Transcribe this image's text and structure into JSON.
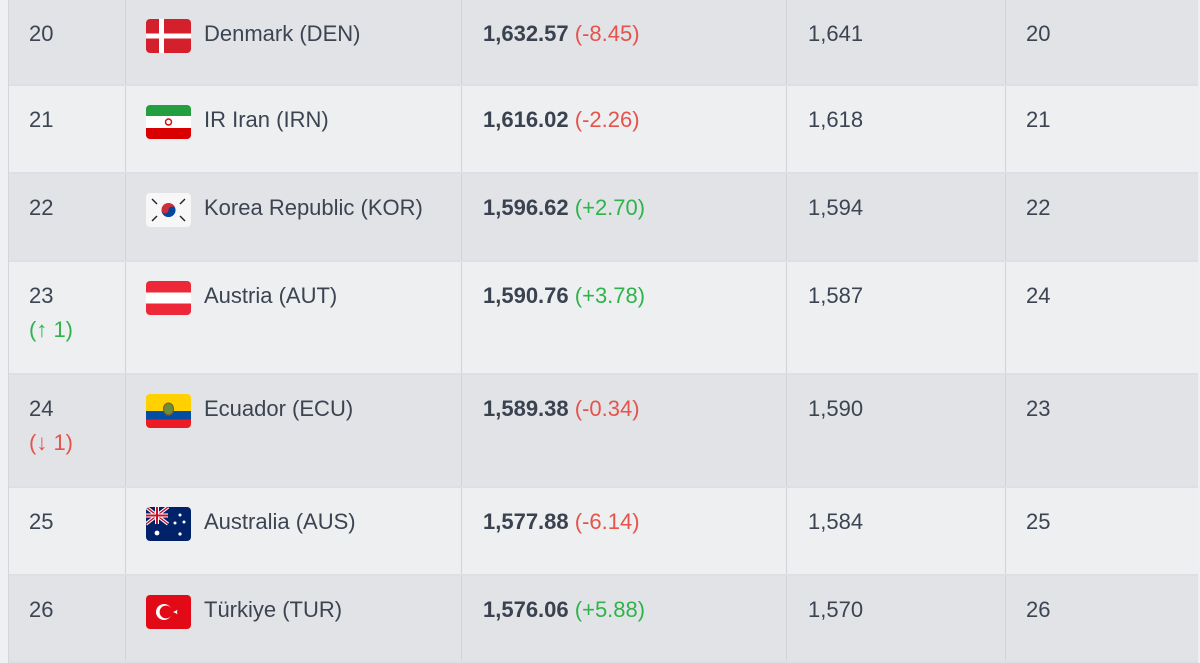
{
  "rows": [
    {
      "rank": "20",
      "movement": "",
      "movement_dir": "",
      "team": "Denmark (DEN)",
      "flag": "denmark-flag-icon",
      "points": "1,632.57",
      "delta": "(-8.45)",
      "delta_dir": "neg",
      "prev_points": "1,641",
      "prev_rank": "20"
    },
    {
      "rank": "21",
      "movement": "",
      "movement_dir": "",
      "team": "IR Iran (IRN)",
      "flag": "iran-flag-icon",
      "points": "1,616.02",
      "delta": "(-2.26)",
      "delta_dir": "neg",
      "prev_points": "1,618",
      "prev_rank": "21"
    },
    {
      "rank": "22",
      "movement": "",
      "movement_dir": "",
      "team": "Korea Republic (KOR)",
      "flag": "korea-flag-icon",
      "points": "1,596.62",
      "delta": "(+2.70)",
      "delta_dir": "pos",
      "prev_points": "1,594",
      "prev_rank": "22"
    },
    {
      "rank": "23",
      "movement": "(↑ 1)",
      "movement_dir": "up",
      "team": "Austria (AUT)",
      "flag": "austria-flag-icon",
      "points": "1,590.76",
      "delta": "(+3.78)",
      "delta_dir": "pos",
      "prev_points": "1,587",
      "prev_rank": "24"
    },
    {
      "rank": "24",
      "movement": "(↓ 1)",
      "movement_dir": "down",
      "team": "Ecuador (ECU)",
      "flag": "ecuador-flag-icon",
      "points": "1,589.38",
      "delta": "(-0.34)",
      "delta_dir": "neg",
      "prev_points": "1,590",
      "prev_rank": "23"
    },
    {
      "rank": "25",
      "movement": "",
      "movement_dir": "",
      "team": "Australia (AUS)",
      "flag": "australia-flag-icon",
      "points": "1,577.88",
      "delta": "(-6.14)",
      "delta_dir": "neg",
      "prev_points": "1,584",
      "prev_rank": "25"
    },
    {
      "rank": "26",
      "movement": "",
      "movement_dir": "",
      "team": "Türkiye (TUR)",
      "flag": "turkiye-flag-icon",
      "points": "1,576.06",
      "delta": "(+5.88)",
      "delta_dir": "pos",
      "prev_points": "1,570",
      "prev_rank": "26"
    }
  ],
  "colors": {
    "negative": "#e5534b",
    "positive": "#2fb34a"
  }
}
